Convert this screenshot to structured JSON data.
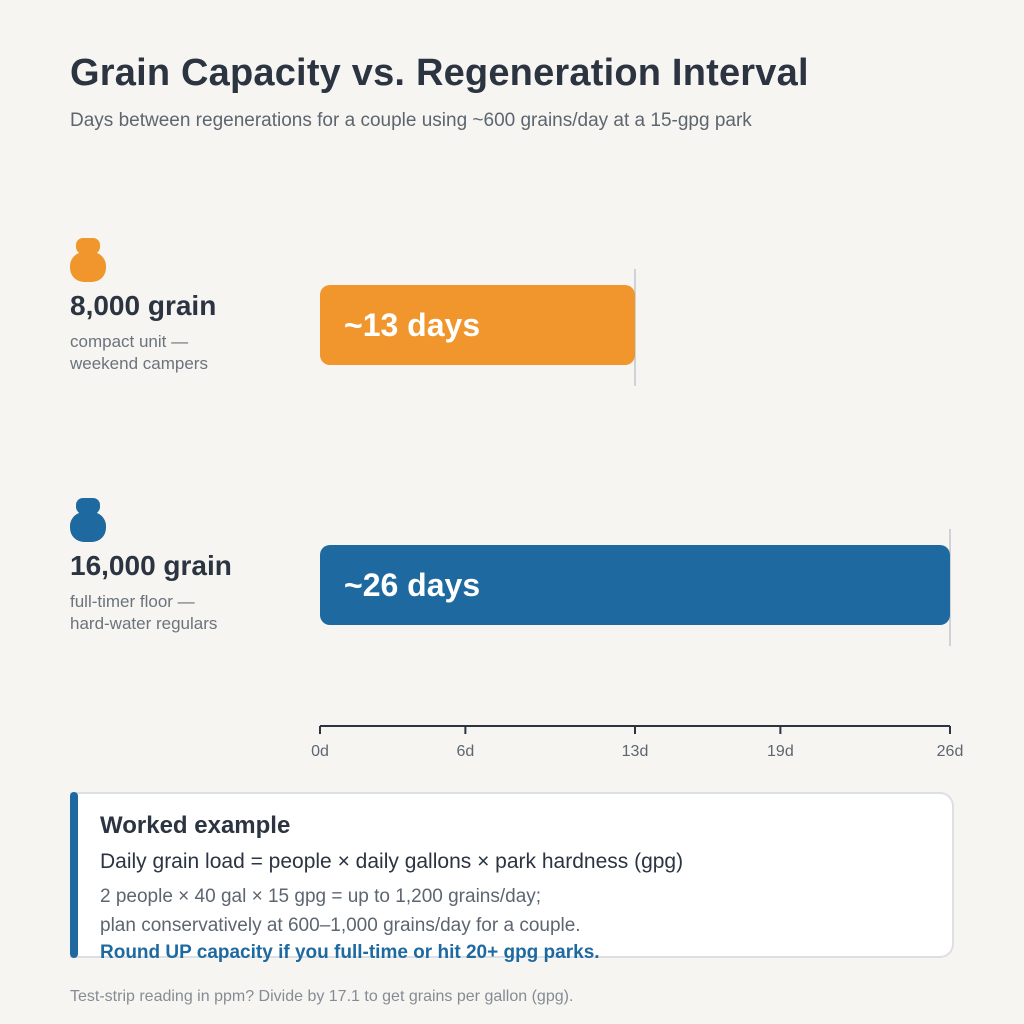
{
  "header": {
    "title": "Grain Capacity vs. Regeneration Interval",
    "subtitle": "Days between regenerations for a couple using ~600 grains/day at a 15-gpg park"
  },
  "rows": [
    {
      "label": "8,000 grain",
      "desc_line1": "compact unit —",
      "desc_line2": "weekend campers",
      "bar_label": "~13 days",
      "color": "#f0962c",
      "icon": "water-softener-icon"
    },
    {
      "label": "16,000 grain",
      "desc_line1": "full-timer floor —",
      "desc_line2": "hard-water regulars",
      "bar_label": "~26 days",
      "color": "#1e6aa0",
      "icon": "water-softener-icon"
    }
  ],
  "chart_data": {
    "type": "bar",
    "orientation": "horizontal",
    "title": "Grain Capacity vs. Regeneration Interval",
    "subtitle": "Days between regenerations for a couple using ~600 grains/day at a 15-gpg park",
    "categories": [
      "8,000 grain",
      "16,000 grain"
    ],
    "values": [
      13,
      26
    ],
    "data_labels": [
      "~13 days",
      "~26 days"
    ],
    "colors": [
      "#f0962c",
      "#1e6aa0"
    ],
    "xlim": [
      0,
      26
    ],
    "x_ticks": [
      0,
      6,
      13,
      19,
      26
    ],
    "x_tick_labels": [
      "0d",
      "6d",
      "13d",
      "19d",
      "26d"
    ],
    "grid": false,
    "legend": "none"
  },
  "note": {
    "title": "Worked example",
    "formula": "Daily grain load = people × daily gallons × park hardness (gpg)",
    "line1": "2 people × 40 gal × 15 gpg = up to 1,200 grains/day;",
    "line2": "plan conservatively at 600–1,000 grains/day for a couple.",
    "emphasis": "Round UP capacity if you full-time or hit 20+ gpg parks.",
    "accent_color": "#1e6aa0"
  },
  "footer": {
    "text": "Test-strip reading in ppm?  Divide by 17.1 to get grains per gallon (gpg)."
  }
}
